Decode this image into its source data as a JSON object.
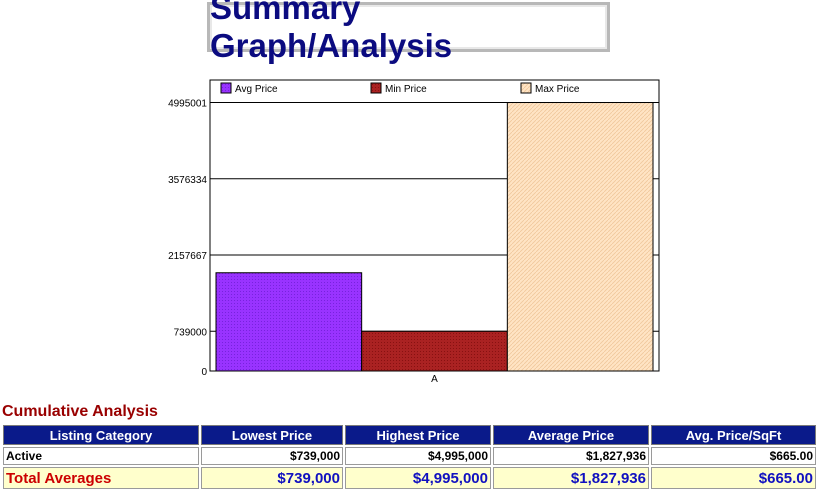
{
  "page": {
    "title": "Summary Graph/Analysis"
  },
  "chart_data": {
    "type": "bar",
    "categories": [
      "A"
    ],
    "series": [
      {
        "name": "Avg Price",
        "values": [
          1827936
        ],
        "color": "#9933ff",
        "legend": "Avg Price"
      },
      {
        "name": "Min Price",
        "values": [
          739000
        ],
        "color": "#aa2222",
        "legend": "Min Price"
      },
      {
        "name": "Max Price",
        "values": [
          4995000
        ],
        "color": "#ffe4c4",
        "legend": "Max Price"
      }
    ],
    "yticks": [
      0,
      739000,
      2157667,
      3576334,
      4995001
    ],
    "ylim": [
      0,
      5414000
    ],
    "grid": true,
    "legend": "top",
    "title": "",
    "xlabel": "",
    "ylabel": ""
  },
  "cumulative": {
    "title": "Cumulative Analysis",
    "headers": [
      "Listing Category",
      "Lowest Price",
      "Highest Price",
      "Average Price",
      "Avg. Price/SqFt"
    ],
    "rows": [
      [
        "Active",
        "$739,000",
        "$4,995,000",
        "$1,827,936",
        "$665.00"
      ]
    ],
    "total": [
      "Total Averages",
      "$739,000",
      "$4,995,000",
      "$1,827,936",
      "$665.00"
    ]
  }
}
